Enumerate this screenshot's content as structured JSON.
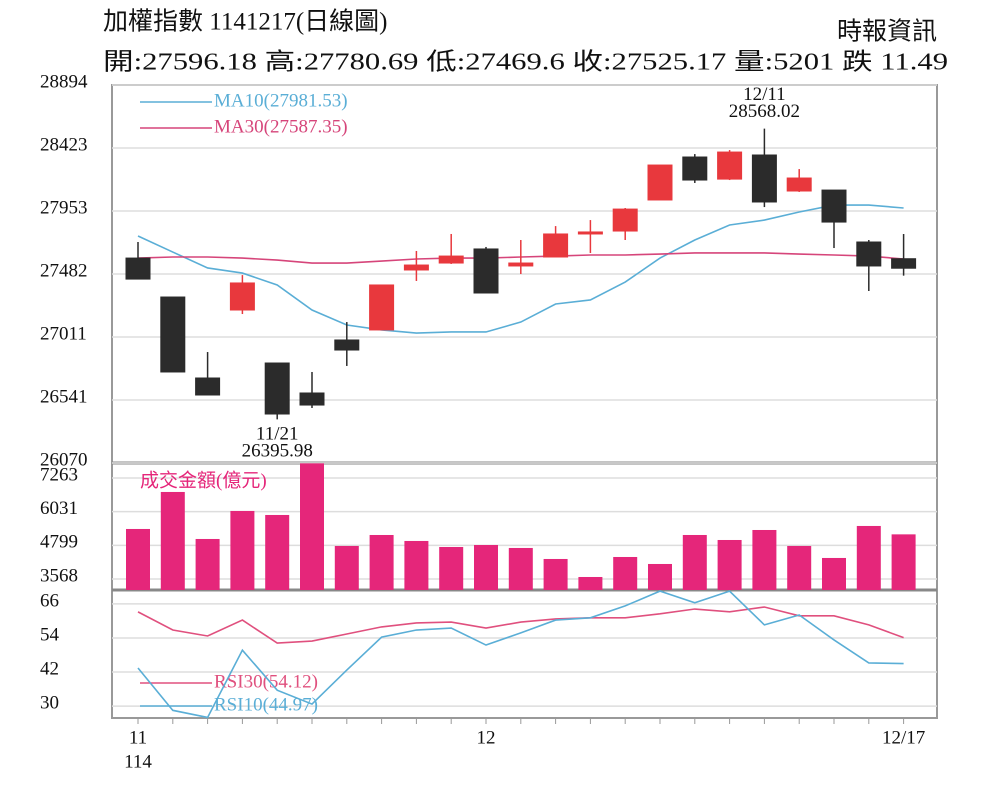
{
  "chart_data": [
    {
      "type": "candlestick",
      "title": "加權指數 1141217(日線圖)",
      "source": "時報資訊",
      "subtitle": "開:27596.18 高:27780.69 低:27469.6 收:27525.17 量:5201 跌 11.49",
      "categories": [
        "11",
        null,
        null,
        null,
        null,
        null,
        null,
        null,
        null,
        null,
        "12",
        null,
        null,
        null,
        null,
        null,
        null,
        null,
        null,
        null,
        null,
        null,
        "12/17"
      ],
      "x_sublabel": "114",
      "open": [
        27601,
        27310,
        26705,
        27213,
        26817,
        26593,
        26989,
        27064,
        27512,
        27564,
        27669,
        27542,
        27609,
        27781,
        27803,
        28035,
        28356,
        28191,
        28371,
        28102,
        28109,
        27721,
        27596.18
      ],
      "high": [
        27721,
        27310,
        26899,
        27474,
        26817,
        26750,
        27123,
        27400,
        27654,
        27781,
        27684,
        27736,
        27840,
        27885,
        27975,
        28296,
        28378,
        28408,
        28568.02,
        28266,
        28109,
        27736,
        27780.69
      ],
      "low": [
        27444,
        26750,
        26578,
        27183,
        26395.98,
        26481,
        26795,
        27064,
        27430,
        27557,
        27340,
        27482,
        27609,
        27639,
        27736,
        28035,
        28162,
        28184,
        27982,
        28095,
        27676,
        27355,
        27469.6
      ],
      "close": [
        27444,
        26750,
        26578,
        27415,
        26436,
        26503,
        26914,
        27400,
        27549,
        27616,
        27340,
        27564,
        27781,
        27796,
        27967,
        28296,
        28184,
        28393,
        28020,
        28199,
        27870,
        27542,
        27525.17
      ],
      "up_color": "#e8383d",
      "down_color": "#2b2b2b",
      "series": [
        {
          "name": "MA10(27981.53)",
          "color": "#5aaed6",
          "values": [
            27766,
            27646,
            27527,
            27489,
            27400,
            27213,
            27101,
            27064,
            27041,
            27049,
            27049,
            27123,
            27258,
            27288,
            27422,
            27601,
            27736,
            27848,
            27885,
            27945,
            27997,
            27997,
            27975
          ]
        },
        {
          "name": "MA30(27587.35)",
          "color": "#d6457a",
          "values": [
            27601,
            27609,
            27609,
            27601,
            27586,
            27564,
            27564,
            27579,
            27594,
            27601,
            27601,
            27609,
            27616,
            27624,
            27624,
            27631,
            27639,
            27639,
            27639,
            27631,
            27624,
            27616,
            27594
          ]
        }
      ],
      "annotations": [
        "12/11",
        "28568.02",
        "11/21",
        "26395.98"
      ],
      "ylim": [
        26070,
        28894
      ],
      "yticks": [
        26070,
        26541,
        27011,
        27482,
        27953,
        28423,
        28894
      ],
      "grid": true
    },
    {
      "type": "bar",
      "series": [
        {
          "name": "成交金額(億元)",
          "color": "#e5267a",
          "values": [
            5398,
            6752,
            5032,
            6057,
            5910,
            7800,
            4776,
            5178,
            4959,
            4739,
            4812,
            4703,
            4300,
            3641,
            4373,
            4117,
            5178,
            4995,
            5361,
            4776,
            4337,
            5508,
            5201
          ]
        }
      ],
      "ylim": [
        3165,
        7812
      ],
      "yticks": [
        3568,
        4799,
        6031,
        7263
      ],
      "grid": true
    },
    {
      "type": "line",
      "series": [
        {
          "name": "RSI30(54.12)",
          "color": "#e0507e",
          "values": [
            63.2,
            56.8,
            54.7,
            60.3,
            52.2,
            52.9,
            55.4,
            57.9,
            59.3,
            59.6,
            57.5,
            59.6,
            60.7,
            61.1,
            61.1,
            62.5,
            64.2,
            63.2,
            64.9,
            61.8,
            61.8,
            58.6,
            54.12
          ]
        },
        {
          "name": "RSI10(44.97)",
          "color": "#5aaed6",
          "values": [
            43.4,
            28.5,
            26.0,
            49.7,
            35.6,
            30.7,
            42.7,
            54.3,
            56.8,
            57.5,
            51.5,
            55.8,
            60.3,
            61.1,
            65.3,
            70.5,
            66.4,
            70.5,
            58.6,
            62.1,
            53.3,
            45.2,
            44.97
          ]
        }
      ],
      "ylim": [
        25.8,
        70.9
      ],
      "yticks": [
        30,
        42,
        54,
        66
      ],
      "grid": true
    }
  ]
}
